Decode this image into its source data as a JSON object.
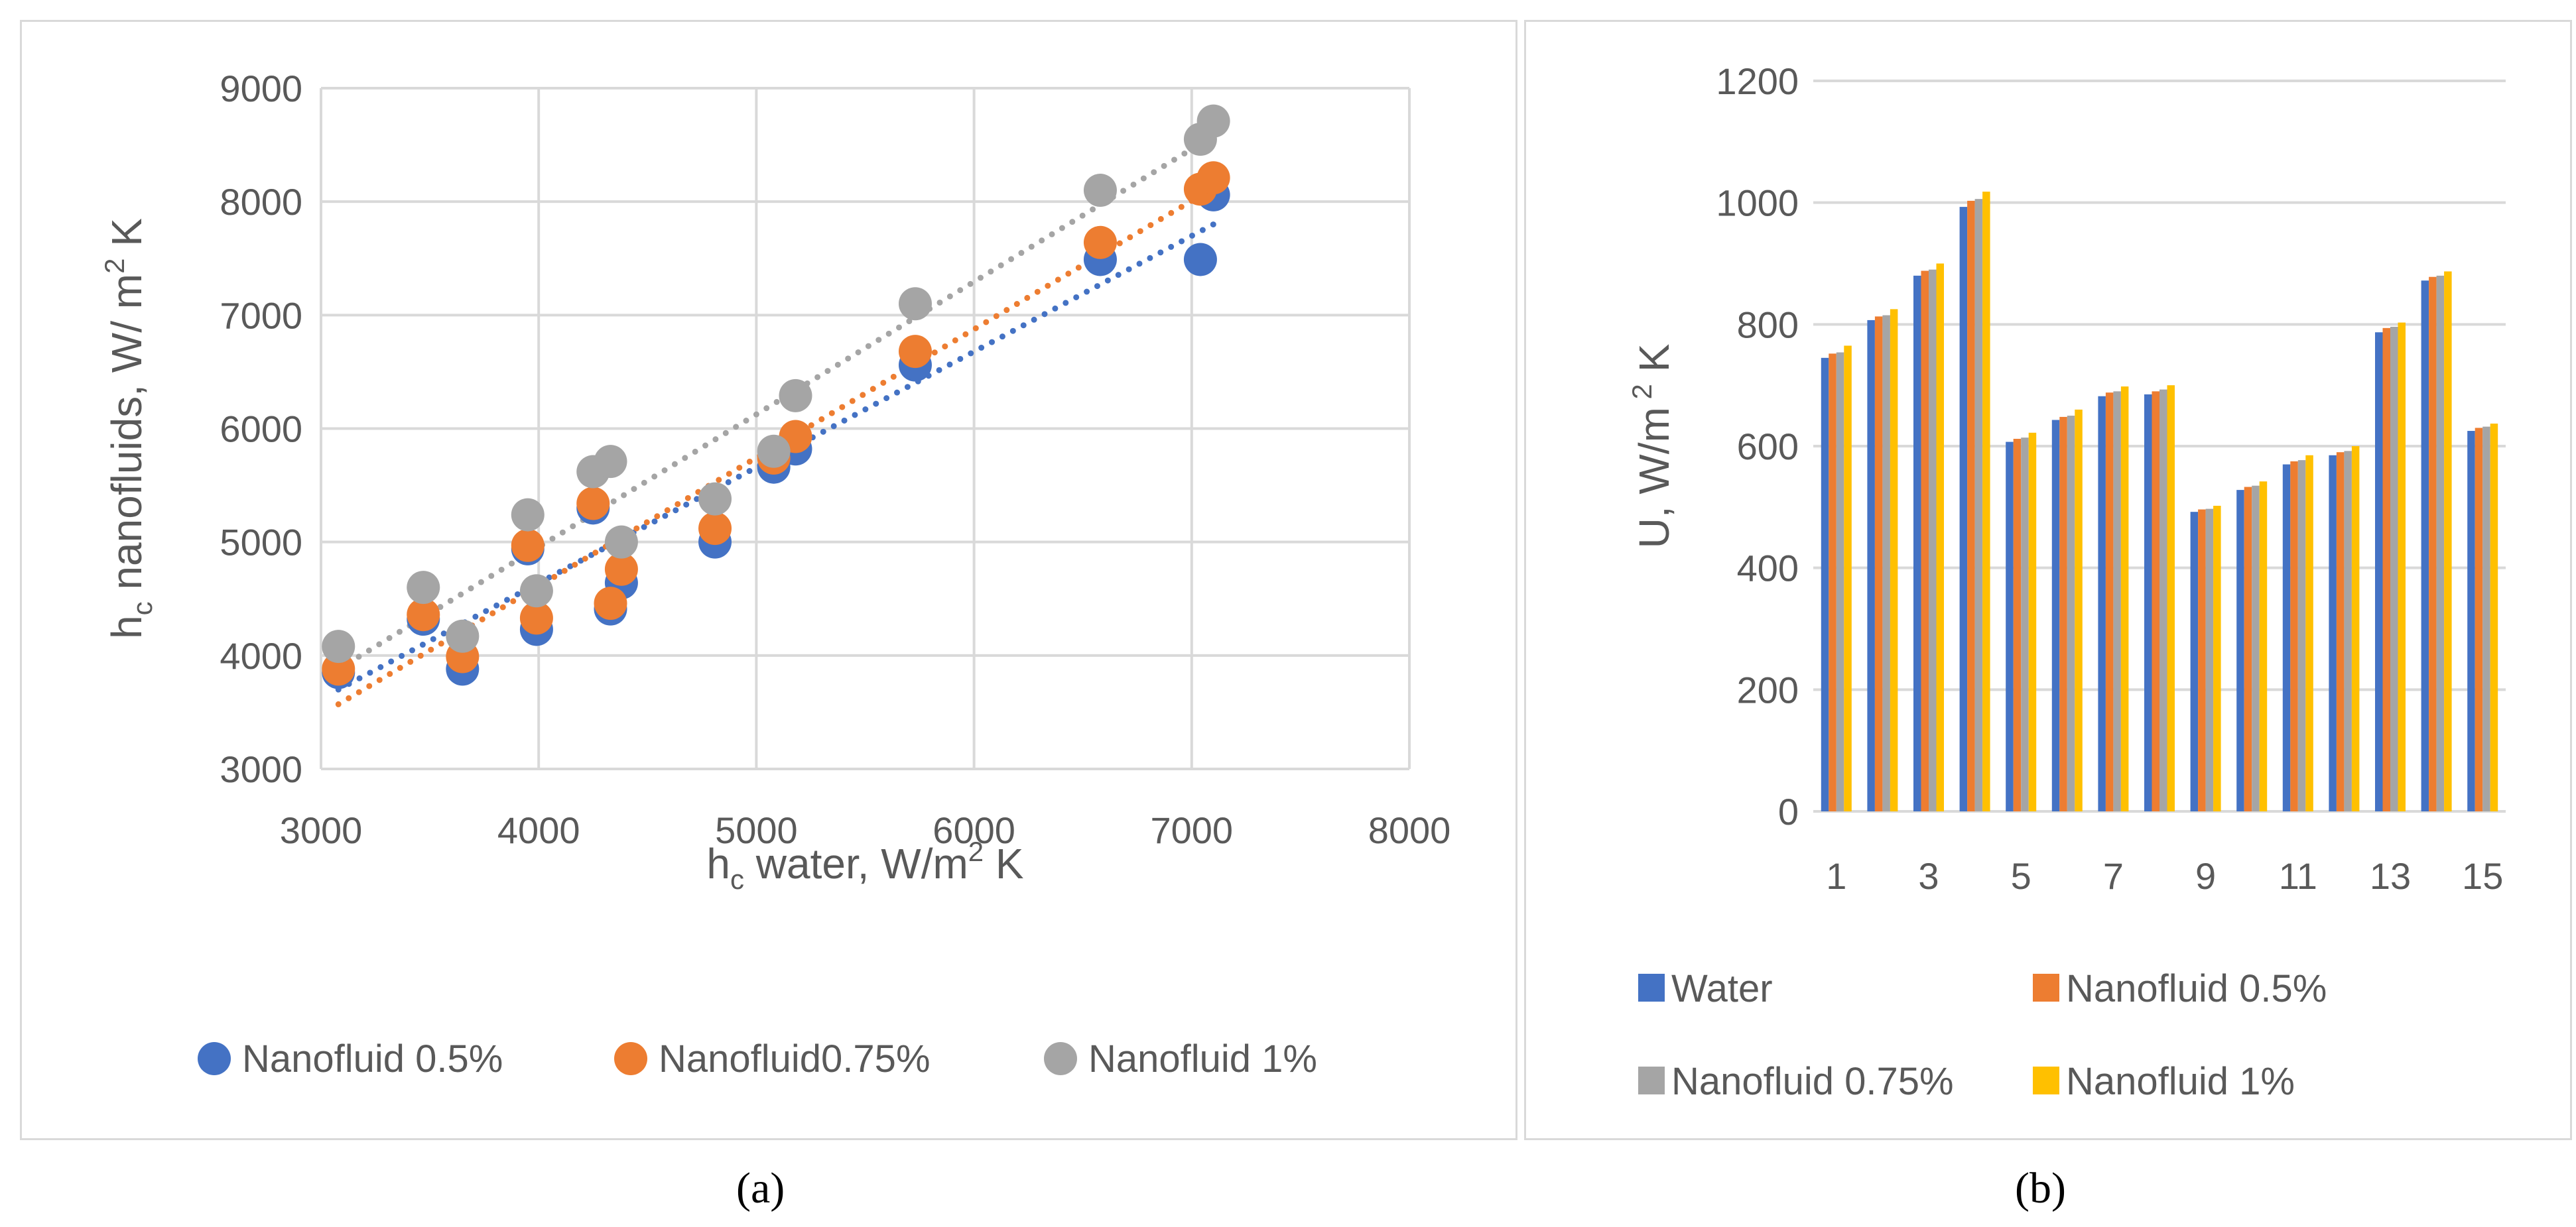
{
  "chart_data": [
    {
      "panel": "a",
      "type": "scatter",
      "caption": "(a)",
      "xlabel": {
        "main": "h",
        "sub": "c",
        "rest": " water, W/m",
        "sup": "2",
        "tail": " K"
      },
      "ylabel": {
        "main": "h",
        "sub": "c",
        "rest": " nanofluids, W/ m",
        "sup": "2",
        "tail": " K"
      },
      "xlim": [
        3000,
        8000
      ],
      "ylim": [
        3000,
        9000
      ],
      "xticks": [
        3000,
        4000,
        5000,
        6000,
        7000,
        8000
      ],
      "yticks": [
        3000,
        4000,
        5000,
        6000,
        7000,
        8000,
        9000
      ],
      "grid": true,
      "legend_position": "bottom",
      "series": [
        {
          "name": "Nanofluid 0.5%",
          "color": "#4472c4",
          "x": [
            3080,
            3470,
            3650,
            3950,
            3990,
            4250,
            4330,
            4380,
            4810,
            5080,
            5180,
            5730,
            6580,
            7040,
            7100
          ],
          "y": [
            3850,
            4320,
            3880,
            4940,
            4230,
            5300,
            4410,
            4640,
            5000,
            5660,
            5820,
            6560,
            7490,
            7490,
            8060
          ],
          "trend": [
            [
              3080,
              3700
            ],
            [
              7100,
              7800
            ]
          ]
        },
        {
          "name": "Nanofluid0.75%",
          "color": "#ed7d31",
          "x": [
            3080,
            3470,
            3650,
            3950,
            3990,
            4250,
            4330,
            4380,
            4810,
            5080,
            5180,
            5730,
            6580,
            7040,
            7100
          ],
          "y": [
            3880,
            4360,
            3990,
            4970,
            4330,
            5340,
            4460,
            4760,
            5120,
            5740,
            5930,
            6680,
            7640,
            8110,
            8210
          ],
          "trend": [
            [
              3080,
              3570
            ],
            [
              7100,
              8120
            ]
          ]
        },
        {
          "name": "Nanofluid 1%",
          "color": "#a5a5a5",
          "x": [
            3080,
            3470,
            3650,
            3950,
            3990,
            4250,
            4330,
            4380,
            4810,
            5080,
            5180,
            5730,
            6580,
            7040,
            7100
          ],
          "y": [
            4080,
            4600,
            4170,
            5240,
            4570,
            5620,
            5710,
            5000,
            5380,
            5800,
            6290,
            7100,
            8100,
            8550,
            8710
          ],
          "trend": [
            [
              3080,
              3880
            ],
            [
              7100,
              8580
            ]
          ]
        }
      ]
    },
    {
      "panel": "b",
      "type": "bar",
      "caption": "(b)",
      "ylabel": {
        "main": "U, W/m",
        "sup": " 2",
        "tail": " K"
      },
      "xlabel": "",
      "ylim": [
        0,
        1200
      ],
      "yticks": [
        0,
        200,
        400,
        600,
        800,
        1000,
        1200
      ],
      "categories": [
        "1",
        "2",
        "3",
        "4",
        "5",
        "6",
        "7",
        "8",
        "9",
        "10",
        "11",
        "12",
        "13",
        "14",
        "15"
      ],
      "xtick_labels": [
        "1",
        "",
        "3",
        "",
        "5",
        "",
        "7",
        "",
        "9",
        "",
        "11",
        "",
        "13",
        "",
        "15"
      ],
      "grid": true,
      "legend_position": "bottom",
      "series": [
        {
          "name": "Water",
          "color": "#4472c4",
          "values": [
            745,
            807,
            880,
            993,
            607,
            643,
            682,
            685,
            492,
            528,
            570,
            585,
            787,
            872,
            625
          ]
        },
        {
          "name": "Nanofluid 0.5%",
          "color": "#ed7d31",
          "values": [
            752,
            813,
            888,
            1003,
            612,
            648,
            688,
            690,
            496,
            533,
            575,
            590,
            794,
            878,
            630
          ]
        },
        {
          "name": "Nanofluid 0.75%",
          "color": "#a5a5a5",
          "values": [
            754,
            815,
            890,
            1006,
            614,
            650,
            690,
            693,
            497,
            535,
            577,
            592,
            796,
            880,
            632
          ]
        },
        {
          "name": "Nanofluid 1%",
          "color": "#ffc000",
          "values": [
            765,
            825,
            900,
            1018,
            622,
            660,
            698,
            700,
            502,
            542,
            585,
            600,
            803,
            887,
            637
          ]
        }
      ]
    }
  ]
}
